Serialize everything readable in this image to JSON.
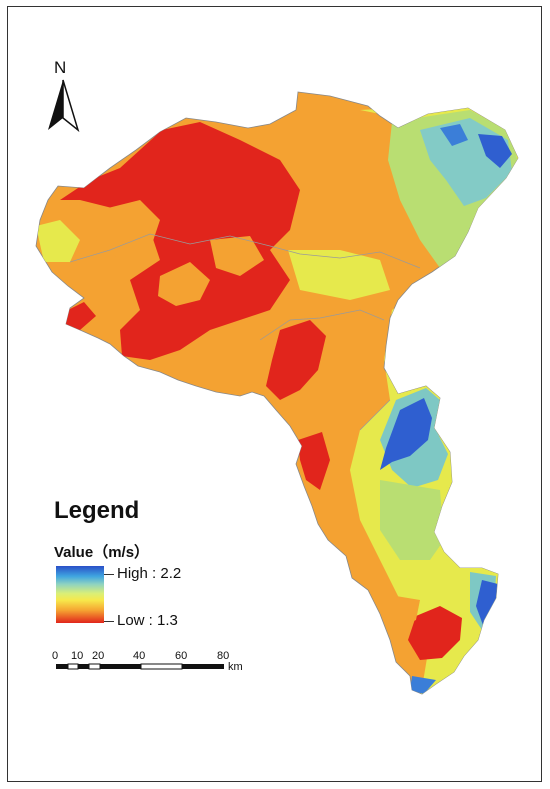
{
  "north": {
    "label": "N",
    "icon": "north-arrow-icon"
  },
  "legend": {
    "title": "Legend",
    "value_label": "Value（m/s）",
    "high_label": "High : 2.2",
    "low_label": "Low : 1.3",
    "high_value": 2.2,
    "low_value": 1.3,
    "ramp_colors": [
      "#2a4fc8",
      "#3fa5e0",
      "#8fd3c0",
      "#d9ef78",
      "#f7e84b",
      "#f5a331",
      "#e1251c"
    ]
  },
  "scale_bar": {
    "ticks": [
      "0",
      "10",
      "20",
      "40",
      "60",
      "80"
    ],
    "unit": "km"
  },
  "colors": {
    "red": "#e1251c",
    "orange": "#f4a232",
    "yellow": "#e8e84a",
    "green": "#b7dd6d",
    "teal": "#7ec8c4",
    "blue": "#2f5fd0"
  }
}
